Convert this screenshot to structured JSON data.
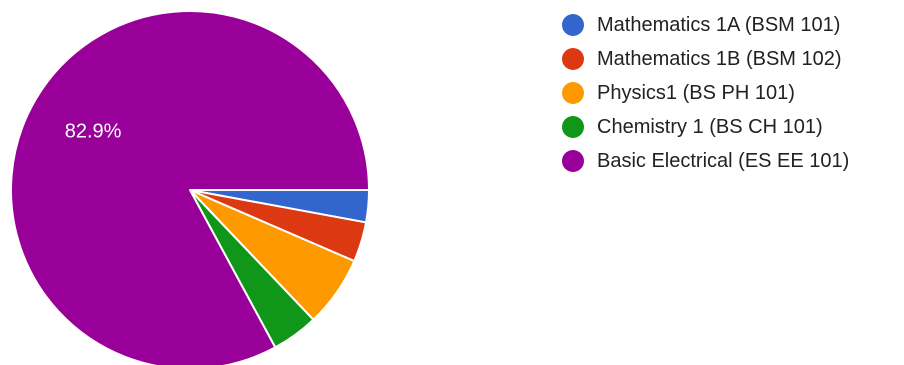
{
  "chart_data": {
    "type": "pie",
    "title": "",
    "categories": [
      "Mathematics 1A (BSM 101)",
      "Mathematics 1B (BSM 102)",
      "Physics1 (BS PH 101)",
      "Chemistry 1 (BS CH 101)",
      "Basic Electrical (ES EE 101)"
    ],
    "values": [
      2.9,
      3.6,
      6.4,
      4.2,
      82.9
    ],
    "colors": [
      "#3366cc",
      "#dc3912",
      "#ff9900",
      "#109618",
      "#990099"
    ],
    "data_labels": [
      "",
      "",
      "",
      "",
      "82.9%"
    ],
    "legend_position": "right",
    "start_angle": "3 o'clock, clockwise"
  }
}
